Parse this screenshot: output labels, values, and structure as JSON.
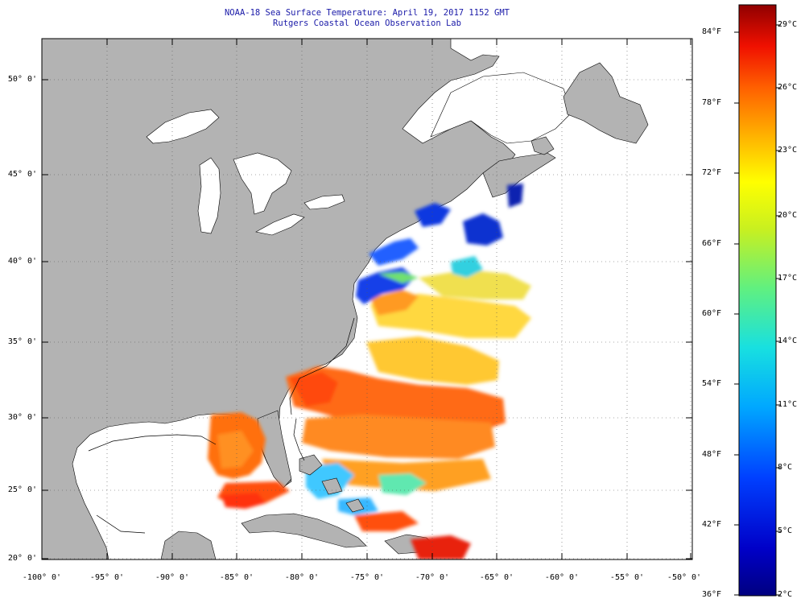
{
  "title": "NOAA-18 Sea Surface Temperature:  April 19, 2017 1152 GMT",
  "subtitle": "Rutgers Coastal Ocean Observation Lab",
  "lat_labels": [
    "50° 0'",
    "45° 0'",
    "40° 0'",
    "35° 0'",
    "30° 0'",
    "25° 0'",
    "20° 0'"
  ],
  "lon_labels": [
    "-100° 0'",
    "-95° 0'",
    "-90° 0'",
    "-85° 0'",
    "-80° 0'",
    "-75° 0'",
    "-70° 0'",
    "-65° 0'",
    "-60° 0'",
    "-55° 0'",
    "-50° 0'"
  ],
  "colorbar": {
    "fahrenheit_labels": [
      "84°F",
      "78°F",
      "72°F",
      "66°F",
      "60°F",
      "54°F",
      "48°F",
      "42°F",
      "36°F"
    ],
    "celsius_labels": [
      "29°C",
      "26°C",
      "23°C",
      "20°C",
      "17°C",
      "14°C",
      "11°C",
      "8°C",
      "5°C",
      "2°C"
    ],
    "range_c": [
      2,
      29
    ],
    "range_f": [
      36,
      84
    ]
  },
  "colors": {
    "land": "#b3b3b3",
    "no_data": "#ffffff",
    "title_text": "#1a1aa8",
    "grid": "#555555"
  }
}
